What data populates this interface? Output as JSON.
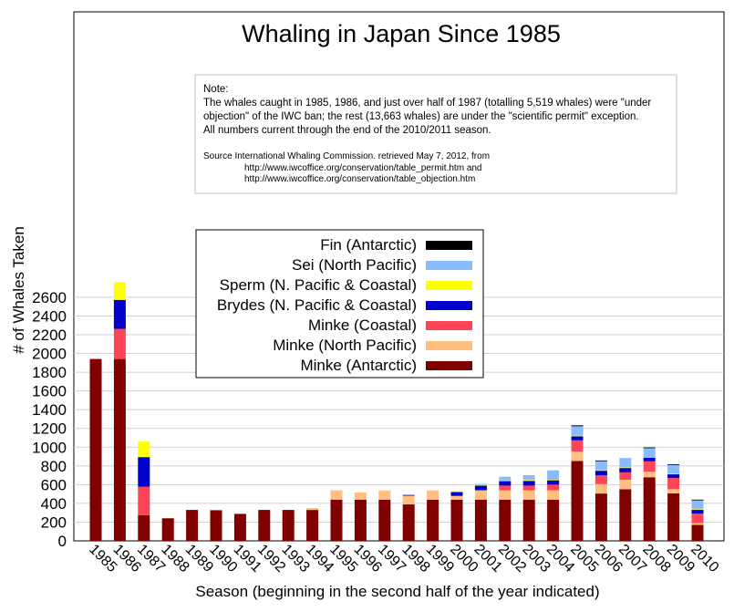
{
  "chart_data": {
    "type": "bar",
    "stacked": true,
    "title": "Whaling in Japan Since 1985",
    "xlabel": "Season (beginning in the second half of the year indicated)",
    "ylabel": "# of Whales Taken",
    "ylim": [
      0,
      2800
    ],
    "yticks": [
      0,
      200,
      400,
      600,
      800,
      1000,
      1200,
      1400,
      1600,
      1800,
      2000,
      2200,
      2400,
      2600
    ],
    "grid": true,
    "legend_position": "center-left",
    "categories": [
      "1985",
      "1986",
      "1987",
      "1988",
      "1989",
      "1990",
      "1991",
      "1992",
      "1993",
      "1994",
      "1995",
      "1996",
      "1997",
      "1998",
      "1999",
      "2000",
      "2001",
      "2002",
      "2003",
      "2004",
      "2005",
      "2006",
      "2007",
      "2008",
      "2009",
      "2010"
    ],
    "series": [
      {
        "name": "Minke (Antarctic)",
        "color": "#800000",
        "values": [
          1941,
          1941,
          273,
          241,
          330,
          327,
          288,
          330,
          330,
          330,
          440,
          440,
          438,
          389,
          439,
          440,
          440,
          440,
          440,
          440,
          853,
          505,
          551,
          679,
          506,
          170
        ]
      },
      {
        "name": "Minke (North Pacific)",
        "color": "#ffbf80",
        "values": [
          0,
          0,
          0,
          0,
          0,
          0,
          0,
          0,
          0,
          21,
          100,
          77,
          100,
          100,
          100,
          40,
          100,
          100,
          100,
          100,
          100,
          100,
          100,
          60,
          45,
          20
        ]
      },
      {
        "name": "Minke (Coastal)",
        "color": "#ff4455",
        "values": [
          0,
          322,
          304,
          0,
          0,
          0,
          0,
          0,
          0,
          0,
          0,
          0,
          0,
          0,
          0,
          0,
          0,
          50,
          50,
          60,
          120,
          95,
          80,
          110,
          120,
          100
        ]
      },
      {
        "name": "Brydes (N. Pacific & Coastal)",
        "color": "#0000cc",
        "values": [
          0,
          309,
          317,
          0,
          0,
          0,
          0,
          0,
          0,
          0,
          0,
          0,
          0,
          1,
          0,
          43,
          50,
          50,
          50,
          50,
          45,
          50,
          50,
          45,
          45,
          45
        ]
      },
      {
        "name": "Sperm (N. Pacific & Coastal)",
        "color": "#ffff00",
        "values": [
          0,
          188,
          165,
          0,
          0,
          0,
          0,
          0,
          0,
          0,
          0,
          0,
          0,
          0,
          0,
          5,
          8,
          5,
          10,
          3,
          5,
          5,
          3,
          2,
          1,
          3
        ]
      },
      {
        "name": "Sei (North Pacific)",
        "color": "#88bbff",
        "values": [
          0,
          0,
          0,
          0,
          0,
          0,
          0,
          0,
          0,
          0,
          0,
          0,
          0,
          0,
          0,
          0,
          10,
          40,
          50,
          100,
          100,
          100,
          100,
          100,
          100,
          100
        ]
      },
      {
        "name": "Fin (Antarctic)",
        "color": "#000000",
        "values": [
          0,
          0,
          0,
          0,
          0,
          0,
          0,
          0,
          0,
          0,
          0,
          0,
          0,
          0,
          0,
          0,
          0,
          0,
          0,
          0,
          10,
          3,
          0,
          1,
          1,
          2
        ]
      }
    ],
    "legend_order": [
      "Fin (Antarctic)",
      "Sei (North Pacific)",
      "Sperm (N. Pacific & Coastal)",
      "Brydes (N. Pacific & Coastal)",
      "Minke (Coastal)",
      "Minke (North Pacific)",
      "Minke (Antarctic)"
    ]
  },
  "note": {
    "heading": "Note:",
    "lines": [
      "The whales caught in 1985, 1986, and just over half of 1987 (totalling 5,519 whales) were \"under",
      "objection\" of the IWC ban; the rest (13,663 whales) are under the \"scientific permit\" exception.",
      "All numbers current through the end of the 2010/2011 season."
    ],
    "source_lines": [
      "Source  International Whaling Commission. retrieved May 7, 2012, from",
      "http://www.iwcoffice.org/conservation/table_permit.htm  and",
      "http://www.iwcoffice.org/conservation/table_objection.htm"
    ]
  }
}
